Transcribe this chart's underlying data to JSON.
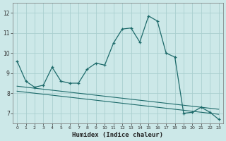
{
  "xlabel": "Humidex (Indice chaleur)",
  "background_color": "#cce8e8",
  "grid_color": "#aacfcf",
  "line_color": "#1e6b6b",
  "xlim": [
    -0.5,
    23.5
  ],
  "ylim": [
    6.5,
    12.5
  ],
  "xticks": [
    0,
    1,
    2,
    3,
    4,
    5,
    6,
    7,
    8,
    9,
    10,
    11,
    12,
    13,
    14,
    15,
    16,
    17,
    18,
    19,
    20,
    21,
    22,
    23
  ],
  "yticks": [
    7,
    8,
    9,
    10,
    11,
    12
  ],
  "series1_x": [
    0,
    1,
    2,
    3,
    4,
    5,
    6,
    7,
    8,
    9,
    10,
    11,
    12,
    13,
    14,
    15,
    16,
    17,
    18,
    19,
    20,
    21,
    22,
    23
  ],
  "series1_y": [
    9.6,
    8.6,
    8.3,
    8.4,
    9.3,
    8.6,
    8.5,
    8.5,
    9.2,
    9.5,
    9.4,
    10.5,
    11.2,
    11.25,
    10.55,
    11.85,
    11.6,
    10.0,
    9.8,
    7.0,
    7.05,
    7.3,
    7.05,
    6.7
  ],
  "series2_x": [
    0,
    1,
    2,
    3,
    4,
    5,
    6,
    7,
    8,
    9,
    10,
    11,
    12,
    13,
    14,
    15,
    16,
    17,
    18,
    19,
    20,
    21,
    22,
    23
  ],
  "series2_y": [
    8.35,
    8.3,
    8.25,
    8.2,
    8.15,
    8.1,
    8.05,
    8.0,
    7.95,
    7.9,
    7.85,
    7.8,
    7.75,
    7.7,
    7.65,
    7.6,
    7.55,
    7.5,
    7.45,
    7.4,
    7.35,
    7.3,
    7.25,
    7.2
  ],
  "series3_x": [
    0,
    1,
    2,
    3,
    4,
    5,
    6,
    7,
    8,
    9,
    10,
    11,
    12,
    13,
    14,
    15,
    16,
    17,
    18,
    19,
    20,
    21,
    22,
    23
  ],
  "series3_y": [
    8.1,
    8.05,
    8.0,
    7.95,
    7.9,
    7.85,
    7.8,
    7.75,
    7.7,
    7.65,
    7.6,
    7.55,
    7.5,
    7.45,
    7.4,
    7.35,
    7.3,
    7.25,
    7.2,
    7.15,
    7.1,
    7.05,
    7.0,
    6.95
  ]
}
